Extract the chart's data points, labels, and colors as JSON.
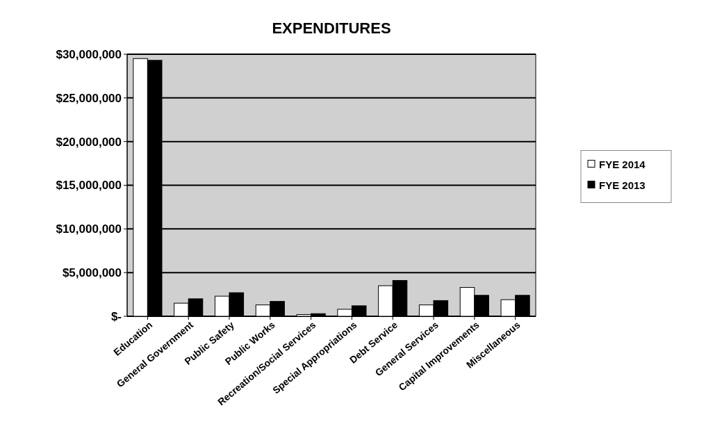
{
  "chart_data": {
    "type": "bar",
    "title": "EXPENDITURES",
    "categories": [
      "Education",
      "General Government",
      "Public Safety",
      "Public Works",
      "Recreation/Social Services",
      "Special Appropriations",
      "Debt Service",
      "General Services",
      "Capital Improvements",
      "Miscellaneous"
    ],
    "series": [
      {
        "name": "FYE 2014",
        "color": "#ffffff",
        "values": [
          29500000,
          1500000,
          2300000,
          1300000,
          200000,
          800000,
          3500000,
          1300000,
          3300000,
          1900000
        ]
      },
      {
        "name": "FYE 2013",
        "color": "#000000",
        "values": [
          29300000,
          2000000,
          2700000,
          1700000,
          300000,
          1200000,
          4100000,
          1800000,
          2400000,
          2400000
        ]
      }
    ],
    "ylim": [
      0,
      30000000
    ],
    "yticks": [
      {
        "value": 0,
        "label": "$-"
      },
      {
        "value": 5000000,
        "label": "$5,000,000"
      },
      {
        "value": 10000000,
        "label": "$10,000,000"
      },
      {
        "value": 15000000,
        "label": "$15,000,000"
      },
      {
        "value": 20000000,
        "label": "$20,000,000"
      },
      {
        "value": 25000000,
        "label": "$25,000,000"
      },
      {
        "value": 30000000,
        "label": "$30,000,000"
      }
    ],
    "grid": "y",
    "legend": "right"
  }
}
